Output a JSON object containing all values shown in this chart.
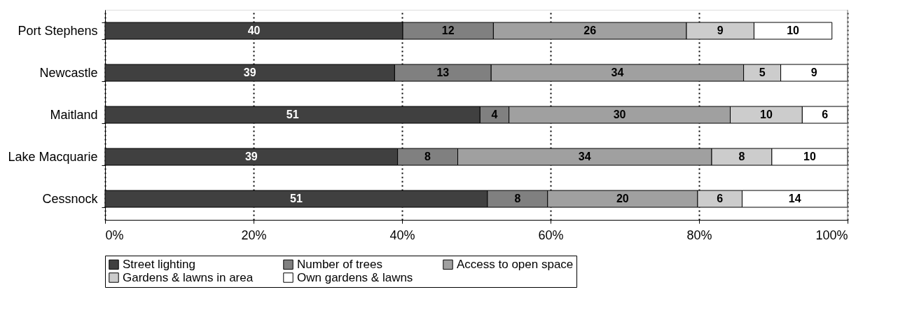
{
  "chart_data": {
    "type": "bar",
    "orientation": "horizontal",
    "stacked": true,
    "categories": [
      "Port Stephens",
      "Newcastle",
      "Maitland",
      "Lake Macquarie",
      "Cessnock"
    ],
    "series": [
      {
        "name": "Street lighting",
        "color": "#404040",
        "values": [
          40.1,
          39.0,
          50.5,
          39.4,
          51.5
        ],
        "value_labels": [
          "40",
          "39",
          "51",
          "39",
          "51"
        ]
      },
      {
        "name": "Number of trees",
        "color": "#808080",
        "values": [
          12.2,
          13.0,
          3.9,
          8.1,
          8.1
        ],
        "value_labels": [
          "12",
          "13",
          "4",
          "8",
          "8"
        ]
      },
      {
        "name": "Access to open space",
        "color": "#a0a0a0",
        "values": [
          26.0,
          34.0,
          29.8,
          34.2,
          20.2
        ],
        "value_labels": [
          "26",
          "34",
          "30",
          "34",
          "20"
        ]
      },
      {
        "name": "Gardens & lawns in area",
        "color": "#cccccc",
        "values": [
          9.1,
          5.0,
          9.7,
          8.1,
          6.0
        ],
        "value_labels": [
          "9",
          "5",
          "10",
          "8",
          "6"
        ]
      },
      {
        "name": "Own gardens & lawns",
        "color": "#ffffff",
        "values": [
          10.5,
          9.0,
          6.1,
          10.2,
          14.2
        ],
        "value_labels": [
          "10",
          "9",
          "6",
          "10",
          "14"
        ]
      }
    ],
    "xlim": [
      0,
      100
    ],
    "xticks": [
      {
        "value": 0,
        "label": "0%"
      },
      {
        "value": 20,
        "label": "20%"
      },
      {
        "value": 40,
        "label": "40%"
      },
      {
        "value": 60,
        "label": "60%"
      },
      {
        "value": 80,
        "label": "80%"
      },
      {
        "value": 100,
        "label": "100%"
      }
    ],
    "grid": "x",
    "line_style": "dotted",
    "legend": "bottom"
  }
}
